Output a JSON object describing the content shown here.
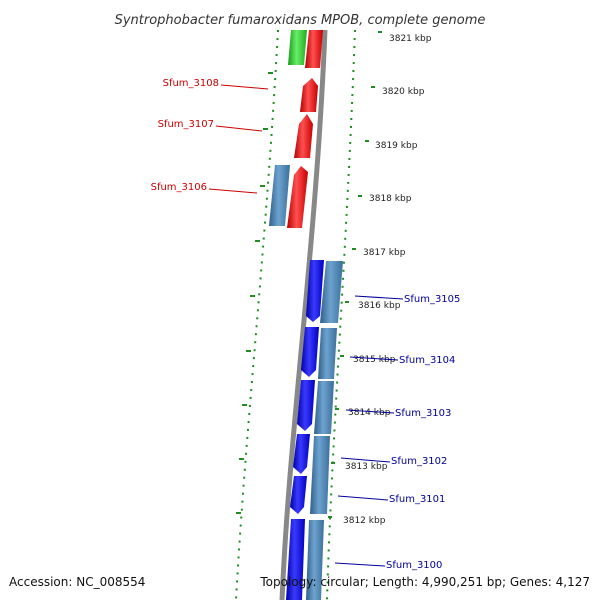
{
  "title": "Syntrophobacter fumaroxidans MPOB, complete genome",
  "footer": {
    "accession": "Accession: NC_008554",
    "topology": "Topology: circular; Length: 4,990,251 bp; Genes: 4,127"
  },
  "scale_labels": [
    "3821 kbp",
    "3820 kbp",
    "3819 kbp",
    "3818 kbp",
    "3817 kbp",
    "3816 kbp",
    "3815 kbp",
    "3814 kbp",
    "3813 kbp",
    "3812 kbp"
  ],
  "gene_labels_left": [
    "Sfum_3108",
    "Sfum_3107",
    "Sfum_3106"
  ],
  "gene_labels_right": [
    "Sfum_3105",
    "Sfum_3104",
    "Sfum_3103",
    "Sfum_3102",
    "Sfum_3101",
    "Sfum_3100"
  ],
  "colors": {
    "forward_gene": "#ff0000",
    "reverse_gene": "#0000ee",
    "cds_steelblue": "#4682b4",
    "rna_gene": "#33cc33",
    "backbone": "#888888",
    "dotted_track": "#228b22",
    "label_red": "#cc0000",
    "label_blue": "#000099"
  }
}
